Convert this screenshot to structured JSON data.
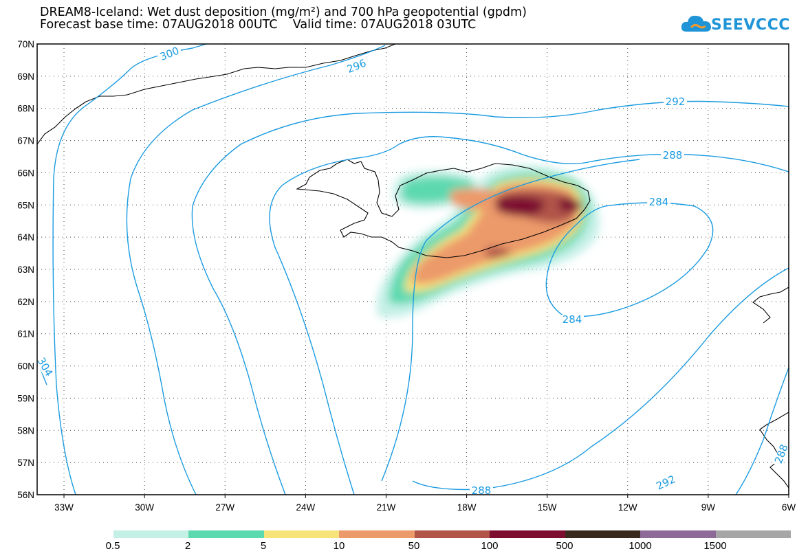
{
  "header": {
    "title_line1": "DREAM8-Iceland: Wet dust deposition (mg/m²) and 700 hPa geopotential (gpdm)",
    "title_line2": "Forecast base time: 07AUG2018 00UTC    Valid time: 07AUG2018 03UTC"
  },
  "logo": {
    "text": "SEEVCCC",
    "icon": "cloud-icon"
  },
  "map": {
    "lat_labels": [
      "70N",
      "69N",
      "68N",
      "67N",
      "66N",
      "65N",
      "64N",
      "63N",
      "62N",
      "61N",
      "60N",
      "59N",
      "58N",
      "57N",
      "56N"
    ],
    "lon_labels": [
      "33W",
      "30W",
      "27W",
      "24W",
      "21W",
      "18W",
      "15W",
      "12W",
      "9W",
      "6W"
    ],
    "contour_labels": [
      "300",
      "296",
      "292",
      "288",
      "284",
      "284",
      "288",
      "292",
      "304",
      "288"
    ],
    "colors": {
      "contour": "#1a9be0",
      "coast": "#000000"
    }
  },
  "legend": {
    "colors": [
      "#c5f0e6",
      "#5dd9b0",
      "#f6e47a",
      "#ec9a6a",
      "#b05548",
      "#7d0e30",
      "#3a2a1e",
      "#8e6a98",
      "#a6a6a6"
    ],
    "labels": [
      "0.5",
      "2",
      "5",
      "10",
      "50",
      "100",
      "500",
      "1000",
      "1500"
    ]
  }
}
